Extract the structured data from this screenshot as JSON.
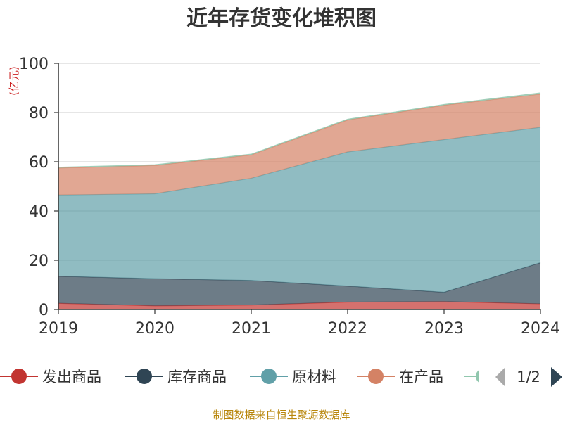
{
  "chart_data": {
    "type": "area",
    "stacked": true,
    "title": "近年存货变化堆积图",
    "ylabel": "(亿元)",
    "x": [
      "2019",
      "2020",
      "2021",
      "2022",
      "2023",
      "2024"
    ],
    "ylim": [
      0,
      100
    ],
    "yticks": [
      "0",
      "20",
      "40",
      "60",
      "80",
      "100"
    ],
    "grid": true,
    "legend_position": "bottom",
    "series": [
      {
        "name": "发出商品",
        "color": "#c23531",
        "values": [
          2.5,
          1.5,
          1.8,
          3.0,
          3.2,
          2.3
        ]
      },
      {
        "name": "库存商品",
        "color": "#2f4554",
        "values": [
          11.0,
          11.0,
          10.0,
          6.5,
          3.8,
          16.7
        ]
      },
      {
        "name": "原材料",
        "color": "#61a0a8",
        "values": [
          33.0,
          34.5,
          41.5,
          54.5,
          62.0,
          55.0
        ]
      },
      {
        "name": "在产品",
        "color": "#d48265",
        "values": [
          11.0,
          11.5,
          9.5,
          13.0,
          14.0,
          13.5
        ]
      },
      {
        "name": "",
        "color": "#91c7ae",
        "values": [
          0.3,
          0.3,
          0.3,
          0.3,
          0.3,
          0.5
        ]
      }
    ]
  },
  "legend": {
    "page": "1/2"
  },
  "source": "制图数据来自恒生聚源数据库"
}
